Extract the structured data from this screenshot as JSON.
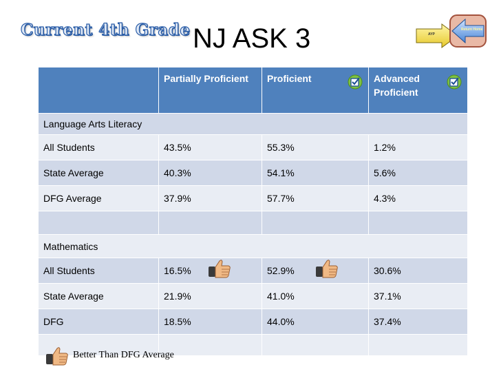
{
  "heading": {
    "wordart": "Current 4th Grade",
    "title": "NJ ASK 3"
  },
  "nav": {
    "forward_label": "AYP",
    "back_label": "Return Home"
  },
  "table": {
    "columns": [
      "",
      "Partially Proficient",
      "Proficient",
      "Advanced Proficient"
    ],
    "sections": [
      {
        "name": "Language Arts Literacy",
        "rows": [
          {
            "label": "All Students",
            "partially": "43.5%",
            "proficient": "55.3%",
            "advanced": "1.2%"
          },
          {
            "label": "State Average",
            "partially": "40.3%",
            "proficient": "54.1%",
            "advanced": "5.6%"
          },
          {
            "label": "DFG Average",
            "partially": "37.9%",
            "proficient": "57.7%",
            "advanced": "4.3%"
          }
        ]
      },
      {
        "name": "Mathematics",
        "rows": [
          {
            "label": "All Students",
            "partially": "16.5%",
            "proficient": "52.9%",
            "advanced": "30.6%"
          },
          {
            "label": "State Average",
            "partially": "21.9%",
            "proficient": "41.0%",
            "advanced": "37.1%"
          },
          {
            "label": "DFG",
            "partially": "18.5%",
            "proficient": "44.0%",
            "advanced": "37.4%"
          }
        ]
      }
    ]
  },
  "legend": {
    "text": "Better Than DFG Average",
    "icon": "thumbs-up-icon"
  },
  "colors": {
    "header": "#4f81bd",
    "row_dark": "#d0d8e8",
    "row_light": "#e9edf4",
    "title_stroke": "#2a5da8"
  }
}
